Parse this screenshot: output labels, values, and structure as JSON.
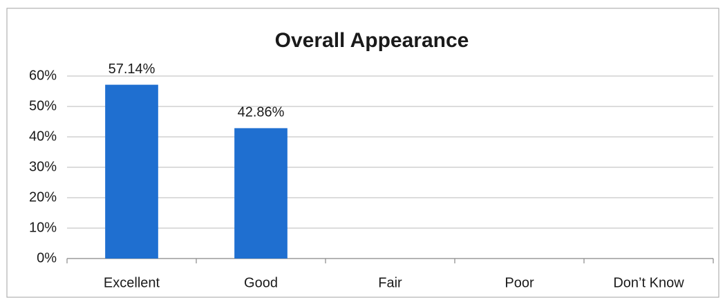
{
  "chart_data": {
    "type": "bar",
    "title": "Overall Appearance",
    "categories": [
      "Excellent",
      "Good",
      "Fair",
      "Poor",
      "Don’t Know"
    ],
    "values": [
      57.14,
      42.86,
      0,
      0,
      0
    ],
    "value_labels": [
      "57.14%",
      "42.86%",
      null,
      null,
      null
    ],
    "color": "#1f6fd0",
    "ylim": [
      0,
      60
    ],
    "yticks": [
      {
        "value": 0,
        "label": "0%"
      },
      {
        "value": 10,
        "label": "10%"
      },
      {
        "value": 20,
        "label": "20%"
      },
      {
        "value": 30,
        "label": "30%"
      },
      {
        "value": 40,
        "label": "40%"
      },
      {
        "value": 50,
        "label": "50%"
      },
      {
        "value": 60,
        "label": "60%"
      }
    ],
    "grid": true
  }
}
